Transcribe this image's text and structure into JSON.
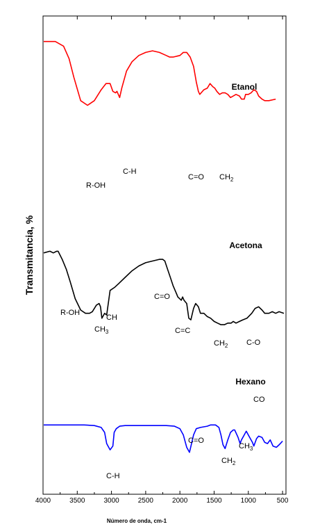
{
  "chart_data": {
    "type": "line",
    "ylabel": "Transmitancia, %",
    "xlabel": "Número de onda, cm-1",
    "xlim": [
      4000,
      450
    ],
    "x_ticks": [
      "4000",
      "3500",
      "3000",
      "2500",
      "2000",
      "1500",
      "1000",
      "500"
    ],
    "x_tick_values": [
      4000,
      3500,
      3000,
      2500,
      2000,
      1500,
      1000,
      500
    ],
    "ylim": [
      0,
      100
    ],
    "grid": false,
    "legend": "none",
    "series": [
      {
        "name": "Etanol",
        "color": "#ff0000",
        "points": [
          [
            3990,
            93
          ],
          [
            3820,
            93
          ],
          [
            3700,
            90
          ],
          [
            3620,
            82
          ],
          [
            3550,
            70
          ],
          [
            3450,
            55
          ],
          [
            3350,
            52
          ],
          [
            3250,
            55
          ],
          [
            3150,
            62
          ],
          [
            3080,
            66
          ],
          [
            3020,
            66
          ],
          [
            2980,
            61
          ],
          [
            2940,
            60
          ],
          [
            2920,
            61
          ],
          [
            2880,
            57
          ],
          [
            2850,
            63
          ],
          [
            2780,
            74
          ],
          [
            2700,
            80
          ],
          [
            2600,
            84
          ],
          [
            2500,
            86
          ],
          [
            2400,
            87
          ],
          [
            2300,
            86
          ],
          [
            2200,
            84
          ],
          [
            2150,
            83
          ],
          [
            2100,
            83
          ],
          [
            2000,
            84
          ],
          [
            1950,
            86
          ],
          [
            1900,
            86
          ],
          [
            1850,
            83
          ],
          [
            1800,
            77
          ],
          [
            1760,
            67
          ],
          [
            1730,
            61
          ],
          [
            1710,
            59
          ],
          [
            1690,
            60
          ],
          [
            1650,
            62
          ],
          [
            1600,
            63
          ],
          [
            1560,
            66
          ],
          [
            1520,
            64
          ],
          [
            1490,
            63
          ],
          [
            1460,
            61
          ],
          [
            1420,
            59
          ],
          [
            1380,
            60
          ],
          [
            1340,
            60
          ],
          [
            1300,
            59
          ],
          [
            1260,
            57
          ],
          [
            1220,
            58
          ],
          [
            1180,
            59
          ],
          [
            1130,
            58
          ],
          [
            1100,
            56
          ],
          [
            1060,
            56
          ],
          [
            1040,
            59
          ],
          [
            1000,
            59
          ],
          [
            960,
            60
          ],
          [
            920,
            62
          ],
          [
            880,
            61
          ],
          [
            850,
            58
          ],
          [
            800,
            56
          ],
          [
            760,
            55
          ],
          [
            700,
            55
          ],
          [
            600,
            56
          ]
        ]
      },
      {
        "name": "Acetona",
        "color": "#000000",
        "points": [
          [
            3990,
            55
          ],
          [
            3900,
            56
          ],
          [
            3850,
            55
          ],
          [
            3800,
            56
          ],
          [
            3780,
            56
          ],
          [
            3720,
            51
          ],
          [
            3660,
            45
          ],
          [
            3600,
            37
          ],
          [
            3530,
            27
          ],
          [
            3450,
            20
          ],
          [
            3380,
            18
          ],
          [
            3320,
            18
          ],
          [
            3280,
            19
          ],
          [
            3220,
            23
          ],
          [
            3180,
            24
          ],
          [
            3160,
            22
          ],
          [
            3140,
            15
          ],
          [
            3100,
            18
          ],
          [
            3070,
            17
          ],
          [
            3020,
            32
          ],
          [
            2950,
            34
          ],
          [
            2900,
            36
          ],
          [
            2800,
            40
          ],
          [
            2700,
            44
          ],
          [
            2600,
            47
          ],
          [
            2500,
            49
          ],
          [
            2400,
            50
          ],
          [
            2300,
            51
          ],
          [
            2250,
            51
          ],
          [
            2220,
            50
          ],
          [
            2180,
            45
          ],
          [
            2140,
            40
          ],
          [
            2100,
            35
          ],
          [
            2050,
            30
          ],
          [
            2030,
            28
          ],
          [
            1980,
            26
          ],
          [
            1960,
            28
          ],
          [
            1940,
            26
          ],
          [
            1900,
            24
          ],
          [
            1870,
            15
          ],
          [
            1840,
            14
          ],
          [
            1800,
            21
          ],
          [
            1770,
            24
          ],
          [
            1730,
            22
          ],
          [
            1700,
            18
          ],
          [
            1650,
            18
          ],
          [
            1600,
            16
          ],
          [
            1550,
            15
          ],
          [
            1500,
            13
          ],
          [
            1450,
            12
          ],
          [
            1400,
            11
          ],
          [
            1350,
            11
          ],
          [
            1300,
            12
          ],
          [
            1250,
            12
          ],
          [
            1220,
            13
          ],
          [
            1180,
            12
          ],
          [
            1130,
            13
          ],
          [
            1080,
            14
          ],
          [
            1020,
            15
          ],
          [
            950,
            18
          ],
          [
            900,
            21
          ],
          [
            850,
            22
          ],
          [
            800,
            20
          ],
          [
            760,
            18
          ],
          [
            700,
            18
          ],
          [
            650,
            19
          ],
          [
            600,
            18
          ],
          [
            550,
            19
          ],
          [
            480,
            18
          ]
        ]
      },
      {
        "name": "Hexano",
        "color": "#0000ff",
        "points": [
          [
            3990,
            30
          ],
          [
            3800,
            30
          ],
          [
            3600,
            30
          ],
          [
            3400,
            30
          ],
          [
            3250,
            29.5
          ],
          [
            3150,
            28
          ],
          [
            3100,
            24
          ],
          [
            3070,
            15
          ],
          [
            3020,
            10
          ],
          [
            2980,
            13
          ],
          [
            2960,
            24
          ],
          [
            2930,
            27
          ],
          [
            2880,
            29
          ],
          [
            2800,
            29.5
          ],
          [
            2600,
            29.5
          ],
          [
            2400,
            29.5
          ],
          [
            2200,
            29.5
          ],
          [
            2080,
            29
          ],
          [
            2000,
            27
          ],
          [
            1950,
            22
          ],
          [
            1900,
            12
          ],
          [
            1860,
            8
          ],
          [
            1800,
            22
          ],
          [
            1760,
            27
          ],
          [
            1700,
            28
          ],
          [
            1650,
            28.5
          ],
          [
            1600,
            29
          ],
          [
            1550,
            30
          ],
          [
            1480,
            30
          ],
          [
            1430,
            28
          ],
          [
            1400,
            22
          ],
          [
            1370,
            14
          ],
          [
            1340,
            11
          ],
          [
            1300,
            18
          ],
          [
            1260,
            24
          ],
          [
            1220,
            26
          ],
          [
            1200,
            26
          ],
          [
            1150,
            20
          ],
          [
            1120,
            15
          ],
          [
            1100,
            18
          ],
          [
            1060,
            22
          ],
          [
            1030,
            25
          ],
          [
            980,
            20
          ],
          [
            940,
            16
          ],
          [
            920,
            13
          ],
          [
            880,
            19
          ],
          [
            850,
            21
          ],
          [
            800,
            20
          ],
          [
            760,
            16
          ],
          [
            720,
            15
          ],
          [
            680,
            18
          ],
          [
            640,
            13
          ],
          [
            590,
            12
          ],
          [
            550,
            14
          ],
          [
            500,
            17
          ]
        ]
      }
    ],
    "annotations": [
      {
        "text": "R-OH",
        "series": "Etanol"
      },
      {
        "text": "C-H",
        "series": "Etanol"
      },
      {
        "text": "C=O",
        "series": "Etanol"
      },
      {
        "text": "CH",
        "sub": "2",
        "series": "Etanol"
      },
      {
        "text": "R-OH",
        "series": "Acetona"
      },
      {
        "text": "CH",
        "sub": "3",
        "series": "Acetona"
      },
      {
        "text": "CH",
        "series": "Acetona"
      },
      {
        "text": "C=O",
        "series": "Acetona"
      },
      {
        "text": "C=C",
        "series": "Acetona"
      },
      {
        "text": "CH",
        "sub": "2",
        "series": "Acetona"
      },
      {
        "text": "C-O",
        "series": "Acetona"
      },
      {
        "text": "C=O",
        "series": "Hexano"
      },
      {
        "text": "CH",
        "sub": "2",
        "series": "Hexano"
      },
      {
        "text": "CH",
        "sub": "3",
        "series": "Hexano"
      },
      {
        "text": "CO",
        "series": "Hexano"
      },
      {
        "text": "C-H",
        "series": "Hexano"
      }
    ]
  }
}
